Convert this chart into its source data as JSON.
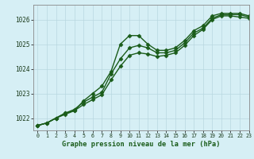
{
  "title": "Graphe pression niveau de la mer (hPa)",
  "background_color": "#d6eff5",
  "line_color": "#1a5c1a",
  "grid_color": "#b8d8e0",
  "xlim": [
    -0.5,
    23
  ],
  "ylim": [
    1021.5,
    1026.6
  ],
  "yticks": [
    1022,
    1023,
    1024,
    1025,
    1026
  ],
  "xticks": [
    0,
    1,
    2,
    3,
    4,
    5,
    6,
    7,
    8,
    9,
    10,
    11,
    12,
    13,
    14,
    15,
    16,
    17,
    18,
    19,
    20,
    21,
    22,
    23
  ],
  "series": [
    {
      "x": [
        0,
        1,
        2,
        3,
        4,
        5,
        6,
        7,
        8,
        9,
        10,
        11,
        12,
        13,
        14,
        15,
        16,
        17,
        18,
        19,
        20,
        21,
        22,
        23
      ],
      "y": [
        1021.7,
        1021.8,
        1022.0,
        1022.2,
        1022.3,
        1022.7,
        1023.0,
        1023.3,
        1023.9,
        1025.0,
        1025.35,
        1025.35,
        1025.0,
        1024.75,
        1024.75,
        1024.85,
        1025.15,
        1025.55,
        1025.75,
        1026.15,
        1026.25,
        1026.25,
        1026.25,
        1026.15
      ],
      "marker": "D",
      "marker_size": 2.5,
      "linewidth": 1.0
    },
    {
      "x": [
        0,
        1,
        2,
        3,
        4,
        5,
        6,
        7,
        8,
        9,
        10,
        11,
        12,
        13,
        14,
        15,
        16,
        17,
        18,
        19,
        20,
        21,
        22,
        23
      ],
      "y": [
        1021.7,
        1021.8,
        1022.0,
        1022.2,
        1022.35,
        1022.65,
        1022.85,
        1023.05,
        1023.8,
        1024.4,
        1024.85,
        1024.95,
        1024.85,
        1024.65,
        1024.65,
        1024.75,
        1025.05,
        1025.45,
        1025.65,
        1026.05,
        1026.2,
        1026.2,
        1026.2,
        1026.1
      ],
      "marker": "D",
      "marker_size": 2.5,
      "linewidth": 1.0
    },
    {
      "x": [
        0,
        1,
        2,
        3,
        4,
        5,
        6,
        7,
        8,
        9,
        10,
        11,
        12,
        13,
        14,
        15,
        16,
        17,
        18,
        19,
        20,
        21,
        22,
        23
      ],
      "y": [
        1021.7,
        1021.8,
        1022.0,
        1022.15,
        1022.3,
        1022.55,
        1022.75,
        1022.95,
        1023.55,
        1024.1,
        1024.55,
        1024.65,
        1024.6,
        1024.5,
        1024.55,
        1024.65,
        1024.95,
        1025.35,
        1025.6,
        1026.0,
        1026.15,
        1026.15,
        1026.1,
        1026.05
      ],
      "marker": "D",
      "marker_size": 2.5,
      "linewidth": 1.0
    }
  ]
}
